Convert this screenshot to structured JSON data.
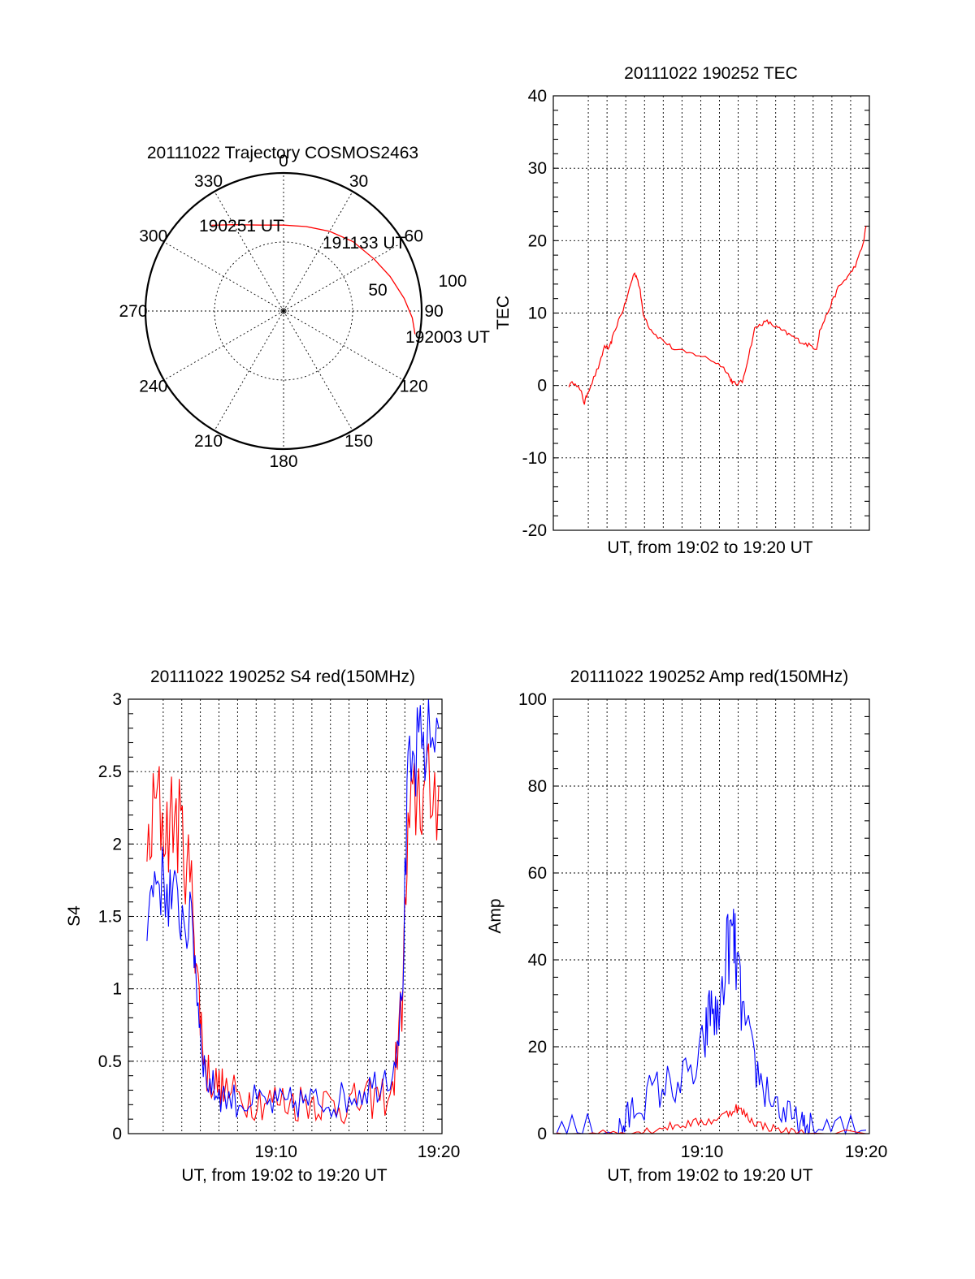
{
  "chart_data": [
    {
      "type": "polar",
      "title": "20111022 Trajectory COSMOS2463",
      "angle_labels": [
        "0",
        "30",
        "60",
        "90",
        "120",
        "150",
        "180",
        "210",
        "240",
        "270",
        "300",
        "330"
      ],
      "radius_labels": [
        "50",
        "100"
      ],
      "trajectory": {
        "color": "#ff0000",
        "points": [
          {
            "azimuth": 320,
            "zenith": 73
          },
          {
            "azimuth": 330,
            "zenith": 65
          },
          {
            "azimuth": 345,
            "zenith": 58
          },
          {
            "azimuth": 0,
            "zenith": 56
          },
          {
            "azimuth": 15,
            "zenith": 57
          },
          {
            "azimuth": 30,
            "zenith": 60
          },
          {
            "azimuth": 45,
            "zenith": 64
          },
          {
            "azimuth": 60,
            "zenith": 68
          },
          {
            "azimuth": 72,
            "zenith": 73
          },
          {
            "azimuth": 84,
            "zenith": 79
          },
          {
            "azimuth": 93,
            "zenith": 84
          },
          {
            "azimuth": 100,
            "zenith": 87
          }
        ]
      },
      "annotations": [
        {
          "text": "190251 UT",
          "azimuth": 320,
          "zenith": 73
        },
        {
          "text": "191133 UT",
          "azimuth": 45,
          "zenith": 64
        },
        {
          "text": "192003 UT",
          "azimuth": 100,
          "zenith": 87
        }
      ]
    },
    {
      "type": "line",
      "title": "20111022 190252 TEC",
      "xlabel": "UT, from 19:02 to 19:20 UT",
      "ylabel": "TEC",
      "xlim": [
        0,
        1
      ],
      "ylim": [
        -20,
        40
      ],
      "yticks": [
        "-20",
        "-10",
        "0",
        "10",
        "20",
        "30",
        "40"
      ],
      "xtick_labels": [],
      "grid": true,
      "series": [
        {
          "color": "#ff0000",
          "x": [
            0.04,
            0.06,
            0.08,
            0.09,
            0.1,
            0.12,
            0.14,
            0.155,
            0.17,
            0.18,
            0.2,
            0.22,
            0.24,
            0.25,
            0.26,
            0.27,
            0.28,
            0.3,
            0.32,
            0.35,
            0.38,
            0.42,
            0.46,
            0.5,
            0.53,
            0.55,
            0.56,
            0.57,
            0.58,
            0.6,
            0.62,
            0.64,
            0.66,
            0.68,
            0.7,
            0.72,
            0.74,
            0.76,
            0.78,
            0.8,
            0.82,
            0.84,
            0.85,
            0.87,
            0.89,
            0.91,
            0.93,
            0.95,
            0.97,
            0.99,
            1.0
          ],
          "y": [
            0,
            0.5,
            -1,
            -2.5,
            -1,
            1,
            3,
            5.5,
            5,
            6.5,
            9,
            11,
            14,
            15.5,
            15,
            13,
            10,
            8,
            7,
            6,
            5,
            4.5,
            4.2,
            3.5,
            2.8,
            2,
            1,
            0.4,
            0.2,
            0.5,
            4,
            7.8,
            8.5,
            8.8,
            8.3,
            7.8,
            7.3,
            6.8,
            6.3,
            5.8,
            5.5,
            5.1,
            7.5,
            9.5,
            11.5,
            13.5,
            14.5,
            15.5,
            17,
            19.5,
            22
          ]
        }
      ]
    },
    {
      "type": "line",
      "title": "20111022 190252 S4 red(150MHz)",
      "xlabel": "UT, from 19:02 to 19:20 UT",
      "ylabel": "S4",
      "xlim": [
        0,
        1
      ],
      "ylim": [
        0,
        3
      ],
      "yticks": [
        "0",
        "0.5",
        "1",
        "1.5",
        "2",
        "2.5",
        "3"
      ],
      "xtick_labels": [
        {
          "x": 0.47,
          "label": "19:10"
        },
        {
          "x": 1.0,
          "label": "19:20"
        }
      ],
      "grid": true,
      "series": [
        {
          "color": "#ff0000",
          "x": [
            0.05,
            0.08,
            0.11,
            0.14,
            0.17,
            0.2,
            0.22,
            0.24,
            0.27,
            0.3,
            0.35,
            0.4,
            0.45,
            0.5,
            0.55,
            0.6,
            0.65,
            0.7,
            0.75,
            0.8,
            0.85,
            0.88,
            0.9,
            0.93,
            0.96,
            1.0
          ],
          "y": [
            1.9,
            2.3,
            2.1,
            2.2,
            2.0,
            1.6,
            0.9,
            0.45,
            0.35,
            0.3,
            0.25,
            0.24,
            0.23,
            0.22,
            0.22,
            0.23,
            0.2,
            0.2,
            0.22,
            0.25,
            0.28,
            0.9,
            2.0,
            2.4,
            2.3,
            2.4
          ],
          "noise": 0.12
        },
        {
          "color": "#0000ff",
          "x": [
            0.05,
            0.08,
            0.11,
            0.14,
            0.17,
            0.2,
            0.22,
            0.24,
            0.27,
            0.3,
            0.35,
            0.4,
            0.45,
            0.5,
            0.55,
            0.6,
            0.65,
            0.7,
            0.75,
            0.8,
            0.85,
            0.88,
            0.9,
            0.93,
            0.96,
            1.0
          ],
          "y": [
            1.5,
            1.8,
            1.7,
            1.6,
            1.5,
            1.4,
            0.8,
            0.4,
            0.3,
            0.26,
            0.22,
            0.22,
            0.2,
            0.2,
            0.22,
            0.22,
            0.22,
            0.25,
            0.3,
            0.35,
            0.45,
            0.9,
            2.4,
            2.6,
            2.7,
            2.8
          ],
          "noise": 0.1
        }
      ]
    },
    {
      "type": "line",
      "title": "20111022 190252 Amp red(150MHz)",
      "xlabel": "UT, from 19:02 to 19:20 UT",
      "ylabel": "Amp",
      "xlim": [
        0,
        1
      ],
      "ylim": [
        0,
        100
      ],
      "yticks": [
        "0",
        "20",
        "40",
        "60",
        "80",
        "100"
      ],
      "xtick_labels": [
        {
          "x": 0.47,
          "label": "19:10"
        },
        {
          "x": 1.0,
          "label": "19:20"
        }
      ],
      "grid": true,
      "series": [
        {
          "color": "#0000ff",
          "x": [
            0,
            0.1,
            0.2,
            0.22,
            0.25,
            0.3,
            0.35,
            0.4,
            0.45,
            0.48,
            0.5,
            0.52,
            0.55,
            0.57,
            0.58,
            0.6,
            0.63,
            0.66,
            0.7,
            0.74,
            0.78,
            0.8,
            0.82,
            0.9,
            1.0
          ],
          "y": [
            0.8,
            0.8,
            0.8,
            2,
            6,
            9,
            11,
            12,
            14,
            22,
            30,
            25,
            42,
            46,
            40,
            28,
            18,
            12,
            8,
            4,
            2,
            0.8,
            0.8,
            0.8,
            0.8
          ],
          "noise": 4
        },
        {
          "color": "#ff0000",
          "x": [
            0,
            0.1,
            0.2,
            0.25,
            0.3,
            0.35,
            0.4,
            0.45,
            0.5,
            0.55,
            0.58,
            0.6,
            0.63,
            0.66,
            0.7,
            0.75,
            0.8,
            1.0
          ],
          "y": [
            0,
            0,
            0,
            0.3,
            0.8,
            1.5,
            2,
            2.5,
            3,
            4.5,
            6,
            5,
            3,
            2,
            1.2,
            0.5,
            0.1,
            0
          ],
          "noise": 1
        }
      ]
    }
  ]
}
